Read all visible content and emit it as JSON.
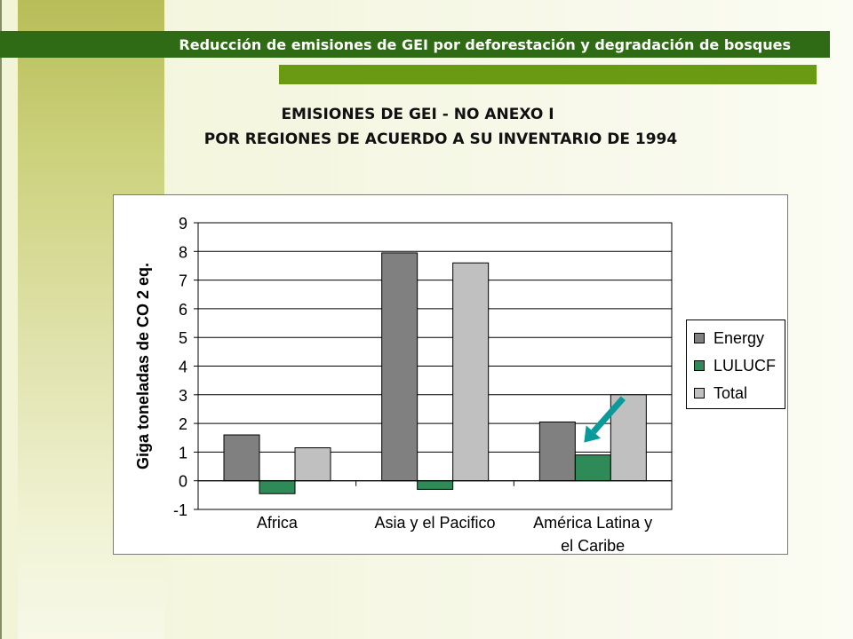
{
  "header": {
    "title": "Reducción de emisiones de GEI por deforestación y degradación de bosques"
  },
  "slide": {
    "title_line1": "EMISIONES DE GEI - NO ANEXO I",
    "title_line2": "POR REGIONES DE ACUERDO A SU INVENTARIO DE 1994"
  },
  "colors": {
    "header_bg": "#2f6a14",
    "accent_bar": "#6a9a12",
    "arrow": "#0a9a9a"
  },
  "chart_data": {
    "type": "bar",
    "title": "",
    "ylabel": "Giga toneladas de CO 2 eq.",
    "xlabel": "",
    "ylim": [
      -1,
      9
    ],
    "yticks": [
      -1,
      0,
      1,
      2,
      3,
      4,
      5,
      6,
      7,
      8,
      9
    ],
    "grid": true,
    "legend_position": "right",
    "categories": [
      [
        "Africa"
      ],
      [
        "Asia y el Pacifico"
      ],
      [
        "América Latina y",
        "el Caribe"
      ]
    ],
    "series": [
      {
        "name": "Energy",
        "color": "#808080",
        "values": [
          1.6,
          7.95,
          2.05
        ]
      },
      {
        "name": "LULUCF",
        "color": "#2e8b57",
        "values": [
          -0.45,
          -0.3,
          0.9
        ]
      },
      {
        "name": "Total",
        "color": "#c0c0c0",
        "values": [
          1.15,
          7.6,
          3.0
        ]
      }
    ],
    "annotation": {
      "type": "arrow",
      "points_to": "América Latina y el Caribe — LULUCF"
    }
  }
}
